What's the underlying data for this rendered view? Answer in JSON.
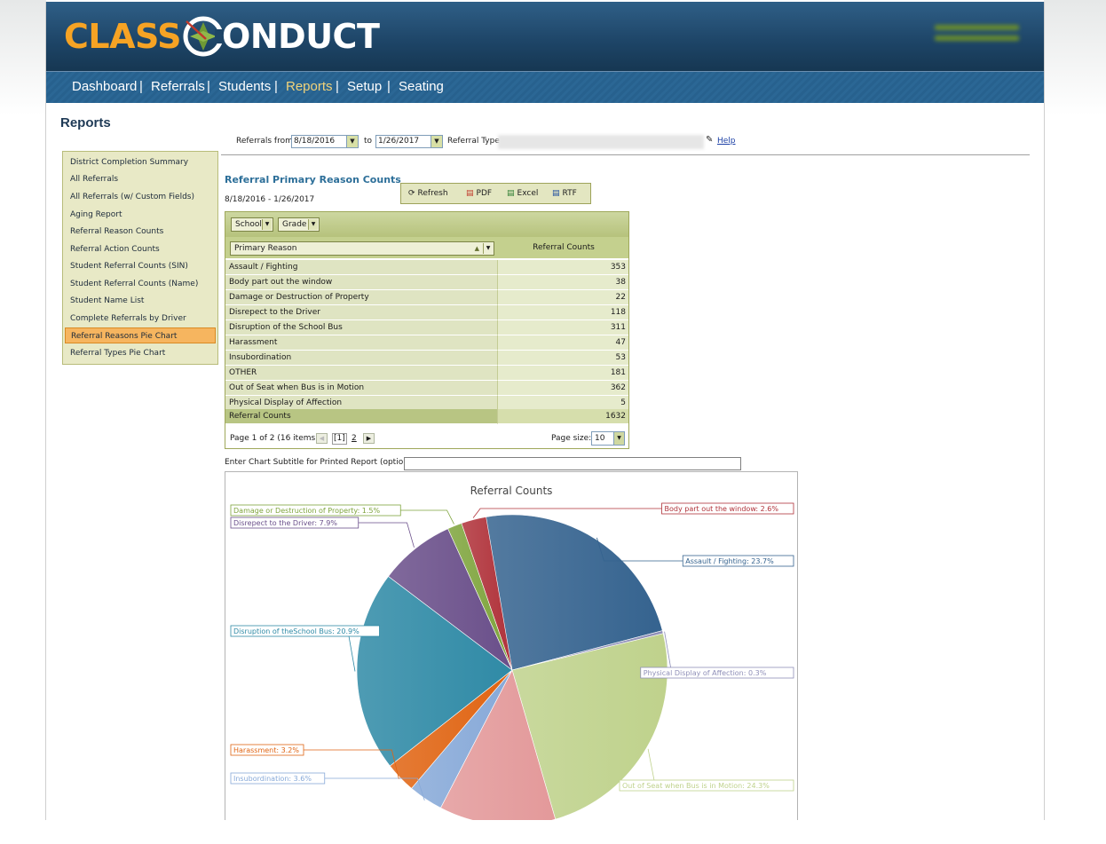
{
  "app": {
    "logo_part1": "CLASS",
    "logo_part2": "ONDUCT"
  },
  "nav": [
    {
      "label": "Dashboard"
    },
    {
      "label": "Referrals"
    },
    {
      "label": "Students"
    },
    {
      "label": "Reports",
      "active": true
    },
    {
      "label": "Setup"
    },
    {
      "label": "Seating"
    }
  ],
  "page_title": "Reports",
  "filters": {
    "from_label": "Referrals from",
    "from_value": "8/18/2016",
    "to_label": "to",
    "to_value": "1/26/2017",
    "type_label": "Referral Type",
    "help_label": "Help"
  },
  "sidebar": {
    "items": [
      {
        "label": "District Completion Summary"
      },
      {
        "label": "All Referrals"
      },
      {
        "label": "All Referrals (w/ Custom Fields)"
      },
      {
        "label": "Aging Report"
      },
      {
        "label": "Referral Reason Counts"
      },
      {
        "label": "Referral Action Counts"
      },
      {
        "label": "Student Referral Counts (SIN)"
      },
      {
        "label": "Student Referral Counts (Name)"
      },
      {
        "label": "Student Name List"
      },
      {
        "label": "Complete Referrals by Driver"
      },
      {
        "label": "Referral Reasons Pie Chart",
        "selected": true
      },
      {
        "label": "Referral Types Pie Chart"
      }
    ]
  },
  "report": {
    "title": "Referral Primary Reason Counts",
    "date_range": "8/18/2016 - 1/26/2017",
    "toolbar": {
      "refresh": "Refresh",
      "pdf": "PDF",
      "excel": "Excel",
      "rtf": "RTF"
    }
  },
  "grid": {
    "group_buttons": [
      "School",
      "Grade"
    ],
    "col_reason": "Primary Reason",
    "col_counts": "Referral Counts",
    "rows": [
      {
        "reason": "Assault / Fighting",
        "count": "353"
      },
      {
        "reason": "Body part out the window",
        "count": "38"
      },
      {
        "reason": "Damage or Destruction of Property",
        "count": "22"
      },
      {
        "reason": "Disrepect to the Driver",
        "count": "118"
      },
      {
        "reason": "Disruption of the School Bus",
        "count": "311"
      },
      {
        "reason": "Harassment",
        "count": "47"
      },
      {
        "reason": "Insubordination",
        "count": "53"
      },
      {
        "reason": "OTHER",
        "count": "181"
      },
      {
        "reason": "Out of Seat when Bus is in Motion",
        "count": "362"
      },
      {
        "reason": "Physical Display of Affection",
        "count": "5"
      }
    ],
    "footer_label": "Referral Counts",
    "footer_total": "1632",
    "pager_text": "Page 1 of 2 (16 items)",
    "pager_current": "[1]",
    "pager_next_page": "2",
    "page_size_label": "Page size:",
    "page_size_value": "10"
  },
  "subtitle_label": "Enter Chart Subtitle for Printed Report (optional):",
  "chart_data": {
    "type": "pie",
    "title": "Referral Counts",
    "slices": [
      {
        "name": "Assault / Fighting",
        "percent": 23.7,
        "label": "Assault / Fighting: 23.7%",
        "color": "#35638f"
      },
      {
        "name": "Physical Display of Affection",
        "percent": 0.3,
        "label": "Physical Display of Affection: 0.3%",
        "color": "#8f8fb8"
      },
      {
        "name": "Out of Seat when Bus is in Motion",
        "percent": 24.3,
        "label": "Out of Seat when Bus is in Motion: 24.3%",
        "color": "#bfd28c"
      },
      {
        "name": "OTHER",
        "percent": 12.1,
        "label": "",
        "color": "#e3999a"
      },
      {
        "name": "Insubordination",
        "percent": 3.6,
        "label": "Insubordination: 3.6%",
        "color": "#87a9d8"
      },
      {
        "name": "Harassment",
        "percent": 3.2,
        "label": "Harassment: 3.2%",
        "color": "#e06412"
      },
      {
        "name": "Disruption of the School Bus",
        "percent": 20.9,
        "label": "Disruption of theSchool Bus: 20.9%",
        "color": "#2f8aa6"
      },
      {
        "name": "Disrepect to the Driver",
        "percent": 7.9,
        "label": "Disrepect to the Driver: 7.9%",
        "color": "#6a4f8a"
      },
      {
        "name": "Damage or Destruction of Property",
        "percent": 1.5,
        "label": "Damage or Destruction of Property: 1.5%",
        "color": "#7ea43c"
      },
      {
        "name": "Body part out the window",
        "percent": 2.6,
        "label": "Body part out the window: 2.6%",
        "color": "#b0323a"
      }
    ]
  }
}
